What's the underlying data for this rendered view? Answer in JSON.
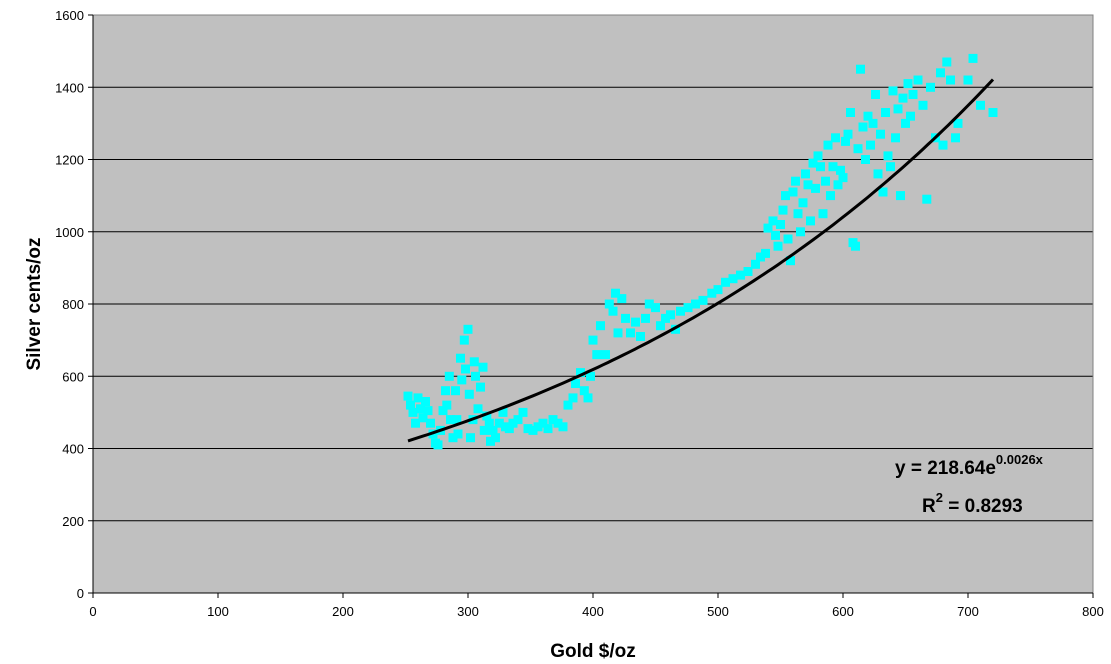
{
  "chart_data": {
    "type": "scatter",
    "xlabel": "Gold $/oz",
    "ylabel": "Silver cents/oz",
    "xlim": [
      0,
      800
    ],
    "ylim": [
      0,
      1600
    ],
    "x_ticks": [
      "0",
      "100",
      "200",
      "300",
      "400",
      "500",
      "600",
      "700",
      "800"
    ],
    "y_ticks": [
      "0",
      "200",
      "400",
      "600",
      "800",
      "1000",
      "1200",
      "1400",
      "1600"
    ],
    "grid": "horizontal",
    "legend": "none",
    "colors": {
      "plot_background": "#c0c0c0",
      "points": "#00ffff",
      "trendline": "#000000"
    },
    "series": [
      {
        "marker": "square",
        "points": [
          [
            252,
            545
          ],
          [
            254,
            520
          ],
          [
            256,
            500
          ],
          [
            258,
            470
          ],
          [
            260,
            540
          ],
          [
            262,
            510
          ],
          [
            264,
            485
          ],
          [
            266,
            530
          ],
          [
            268,
            505
          ],
          [
            270,
            470
          ],
          [
            272,
            440
          ],
          [
            274,
            415
          ],
          [
            276,
            410
          ],
          [
            278,
            450
          ],
          [
            280,
            505
          ],
          [
            282,
            560
          ],
          [
            283,
            520
          ],
          [
            285,
            600
          ],
          [
            286,
            480
          ],
          [
            288,
            430
          ],
          [
            290,
            560
          ],
          [
            291,
            480
          ],
          [
            292,
            440
          ],
          [
            294,
            650
          ],
          [
            295,
            590
          ],
          [
            297,
            700
          ],
          [
            298,
            620
          ],
          [
            300,
            730
          ],
          [
            301,
            550
          ],
          [
            302,
            430
          ],
          [
            304,
            480
          ],
          [
            305,
            640
          ],
          [
            306,
            600
          ],
          [
            308,
            510
          ],
          [
            310,
            570
          ],
          [
            312,
            625
          ],
          [
            313,
            450
          ],
          [
            315,
            490
          ],
          [
            317,
            470
          ],
          [
            318,
            420
          ],
          [
            320,
            450
          ],
          [
            322,
            430
          ],
          [
            325,
            470
          ],
          [
            328,
            500
          ],
          [
            330,
            460
          ],
          [
            333,
            455
          ],
          [
            336,
            470
          ],
          [
            340,
            480
          ],
          [
            344,
            500
          ],
          [
            348,
            455
          ],
          [
            352,
            450
          ],
          [
            356,
            460
          ],
          [
            360,
            470
          ],
          [
            364,
            455
          ],
          [
            368,
            480
          ],
          [
            372,
            470
          ],
          [
            376,
            460
          ],
          [
            380,
            520
          ],
          [
            384,
            540
          ],
          [
            386,
            580
          ],
          [
            390,
            610
          ],
          [
            393,
            560
          ],
          [
            396,
            540
          ],
          [
            398,
            600
          ],
          [
            400,
            700
          ],
          [
            403,
            660
          ],
          [
            406,
            740
          ],
          [
            410,
            660
          ],
          [
            413,
            800
          ],
          [
            416,
            780
          ],
          [
            418,
            830
          ],
          [
            420,
            720
          ],
          [
            423,
            815
          ],
          [
            426,
            760
          ],
          [
            430,
            720
          ],
          [
            434,
            750
          ],
          [
            438,
            710
          ],
          [
            442,
            760
          ],
          [
            445,
            800
          ],
          [
            450,
            790
          ],
          [
            454,
            740
          ],
          [
            458,
            760
          ],
          [
            462,
            770
          ],
          [
            466,
            730
          ],
          [
            470,
            780
          ],
          [
            476,
            790
          ],
          [
            482,
            800
          ],
          [
            488,
            810
          ],
          [
            495,
            830
          ],
          [
            500,
            840
          ],
          [
            506,
            860
          ],
          [
            512,
            870
          ],
          [
            518,
            880
          ],
          [
            524,
            890
          ],
          [
            530,
            910
          ],
          [
            534,
            930
          ],
          [
            538,
            940
          ],
          [
            540,
            1010
          ],
          [
            544,
            1030
          ],
          [
            546,
            990
          ],
          [
            548,
            960
          ],
          [
            550,
            1020
          ],
          [
            552,
            1060
          ],
          [
            554,
            1100
          ],
          [
            556,
            980
          ],
          [
            558,
            920
          ],
          [
            560,
            1110
          ],
          [
            562,
            1140
          ],
          [
            564,
            1050
          ],
          [
            566,
            1000
          ],
          [
            568,
            1080
          ],
          [
            570,
            1160
          ],
          [
            572,
            1130
          ],
          [
            574,
            1030
          ],
          [
            576,
            1190
          ],
          [
            578,
            1120
          ],
          [
            580,
            1210
          ],
          [
            582,
            1180
          ],
          [
            584,
            1050
          ],
          [
            586,
            1140
          ],
          [
            588,
            1240
          ],
          [
            590,
            1100
          ],
          [
            592,
            1180
          ],
          [
            594,
            1260
          ],
          [
            596,
            1130
          ],
          [
            598,
            1170
          ],
          [
            600,
            1150
          ],
          [
            602,
            1250
          ],
          [
            604,
            1270
          ],
          [
            606,
            1330
          ],
          [
            608,
            970
          ],
          [
            610,
            960
          ],
          [
            612,
            1230
          ],
          [
            614,
            1450
          ],
          [
            616,
            1290
          ],
          [
            618,
            1200
          ],
          [
            620,
            1320
          ],
          [
            622,
            1240
          ],
          [
            624,
            1300
          ],
          [
            626,
            1380
          ],
          [
            628,
            1160
          ],
          [
            630,
            1270
          ],
          [
            632,
            1110
          ],
          [
            634,
            1330
          ],
          [
            636,
            1210
          ],
          [
            638,
            1180
          ],
          [
            640,
            1390
          ],
          [
            642,
            1260
          ],
          [
            644,
            1340
          ],
          [
            646,
            1100
          ],
          [
            648,
            1370
          ],
          [
            650,
            1300
          ],
          [
            652,
            1410
          ],
          [
            654,
            1320
          ],
          [
            656,
            1380
          ],
          [
            660,
            1420
          ],
          [
            664,
            1350
          ],
          [
            667,
            1090
          ],
          [
            670,
            1400
          ],
          [
            674,
            1260
          ],
          [
            678,
            1440
          ],
          [
            680,
            1240
          ],
          [
            683,
            1470
          ],
          [
            686,
            1420
          ],
          [
            690,
            1260
          ],
          [
            692,
            1300
          ],
          [
            700,
            1420
          ],
          [
            704,
            1480
          ],
          [
            710,
            1350
          ],
          [
            720,
            1330
          ]
        ]
      }
    ],
    "trendline": {
      "type": "exponential",
      "a": 218.64,
      "b": 0.0026,
      "x_range": [
        252,
        720
      ]
    },
    "annotations": {
      "eq_prefix": "y = 218.64e",
      "eq_exponent": "0.0026x",
      "r2_prefix": "R",
      "r2_super": "2",
      "r2_suffix": " = 0.8293"
    }
  }
}
